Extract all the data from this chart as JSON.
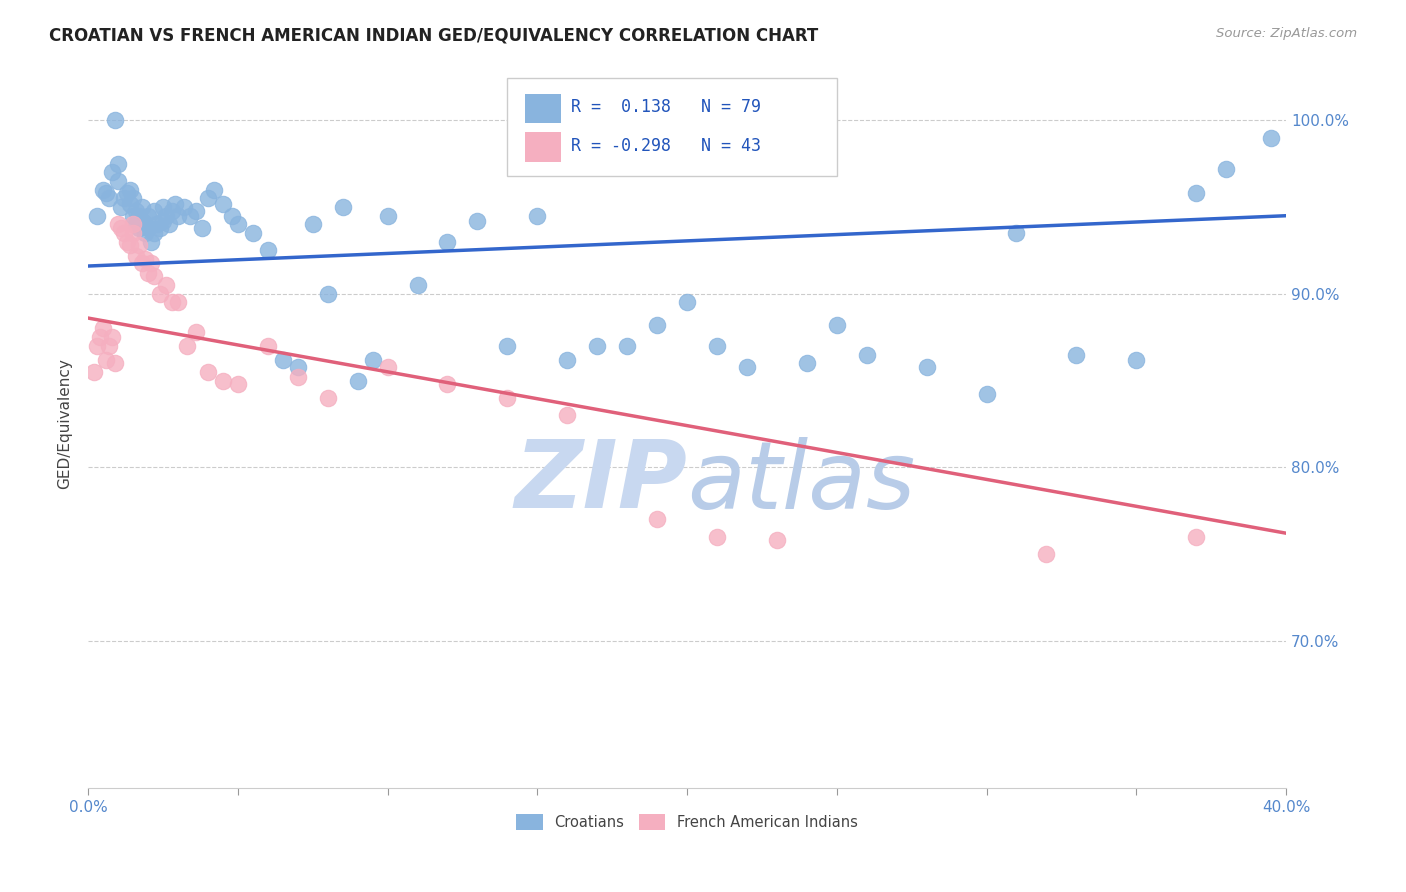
{
  "title": "CROATIAN VS FRENCH AMERICAN INDIAN GED/EQUIVALENCY CORRELATION CHART",
  "source": "Source: ZipAtlas.com",
  "ylabel": "GED/Equivalency",
  "yticks_labels": [
    "70.0%",
    "80.0%",
    "90.0%",
    "100.0%"
  ],
  "ytick_vals": [
    0.7,
    0.8,
    0.9,
    1.0
  ],
  "xlim": [
    0.0,
    0.4
  ],
  "ylim": [
    0.615,
    1.035
  ],
  "legend_R_croatian": "0.138",
  "legend_N_croatian": "79",
  "legend_R_french": "-0.298",
  "legend_N_french": "43",
  "color_croatian": "#89b4de",
  "color_french": "#f5afc0",
  "color_line_croatian": "#3366cc",
  "color_line_french": "#e0607a",
  "watermark_color": "#c8d8f0",
  "croatian_trend_x0": 0.0,
  "croatian_trend_y0": 0.916,
  "croatian_trend_x1": 0.4,
  "croatian_trend_y1": 0.945,
  "french_trend_x0": 0.0,
  "french_trend_y0": 0.886,
  "french_trend_x1": 0.4,
  "french_trend_y1": 0.762,
  "croatian_x": [
    0.003,
    0.005,
    0.006,
    0.007,
    0.008,
    0.009,
    0.01,
    0.01,
    0.011,
    0.012,
    0.013,
    0.014,
    0.014,
    0.015,
    0.015,
    0.016,
    0.016,
    0.017,
    0.017,
    0.018,
    0.018,
    0.019,
    0.019,
    0.02,
    0.02,
    0.021,
    0.022,
    0.022,
    0.023,
    0.024,
    0.025,
    0.025,
    0.026,
    0.027,
    0.028,
    0.029,
    0.03,
    0.032,
    0.034,
    0.036,
    0.038,
    0.04,
    0.042,
    0.045,
    0.048,
    0.05,
    0.055,
    0.06,
    0.065,
    0.07,
    0.075,
    0.08,
    0.085,
    0.09,
    0.095,
    0.1,
    0.11,
    0.12,
    0.13,
    0.14,
    0.15,
    0.16,
    0.17,
    0.18,
    0.19,
    0.2,
    0.21,
    0.22,
    0.24,
    0.25,
    0.26,
    0.28,
    0.3,
    0.31,
    0.33,
    0.35,
    0.37,
    0.38,
    0.395
  ],
  "croatian_y": [
    0.945,
    0.96,
    0.958,
    0.955,
    0.97,
    1.0,
    0.965,
    0.975,
    0.95,
    0.955,
    0.958,
    0.952,
    0.96,
    0.945,
    0.955,
    0.94,
    0.948,
    0.938,
    0.945,
    0.942,
    0.95,
    0.935,
    0.94,
    0.938,
    0.945,
    0.93,
    0.935,
    0.948,
    0.94,
    0.938,
    0.942,
    0.95,
    0.945,
    0.94,
    0.948,
    0.952,
    0.945,
    0.95,
    0.945,
    0.948,
    0.938,
    0.955,
    0.96,
    0.952,
    0.945,
    0.94,
    0.935,
    0.925,
    0.862,
    0.858,
    0.94,
    0.9,
    0.95,
    0.85,
    0.862,
    0.945,
    0.905,
    0.93,
    0.942,
    0.87,
    0.945,
    0.862,
    0.87,
    0.87,
    0.882,
    0.895,
    0.87,
    0.858,
    0.86,
    0.882,
    0.865,
    0.858,
    0.842,
    0.935,
    0.865,
    0.862,
    0.958,
    0.972,
    0.99
  ],
  "french_x": [
    0.002,
    0.003,
    0.004,
    0.005,
    0.006,
    0.007,
    0.008,
    0.009,
    0.01,
    0.011,
    0.012,
    0.013,
    0.014,
    0.015,
    0.015,
    0.016,
    0.017,
    0.018,
    0.019,
    0.02,
    0.021,
    0.022,
    0.024,
    0.026,
    0.028,
    0.03,
    0.033,
    0.036,
    0.04,
    0.045,
    0.05,
    0.06,
    0.07,
    0.08,
    0.1,
    0.12,
    0.14,
    0.16,
    0.19,
    0.21,
    0.23,
    0.32,
    0.37
  ],
  "french_y": [
    0.855,
    0.87,
    0.875,
    0.88,
    0.862,
    0.87,
    0.875,
    0.86,
    0.94,
    0.938,
    0.935,
    0.93,
    0.928,
    0.935,
    0.94,
    0.922,
    0.928,
    0.918,
    0.92,
    0.912,
    0.918,
    0.91,
    0.9,
    0.905,
    0.895,
    0.895,
    0.87,
    0.878,
    0.855,
    0.85,
    0.848,
    0.87,
    0.852,
    0.84,
    0.858,
    0.848,
    0.84,
    0.83,
    0.77,
    0.76,
    0.758,
    0.75,
    0.76
  ]
}
